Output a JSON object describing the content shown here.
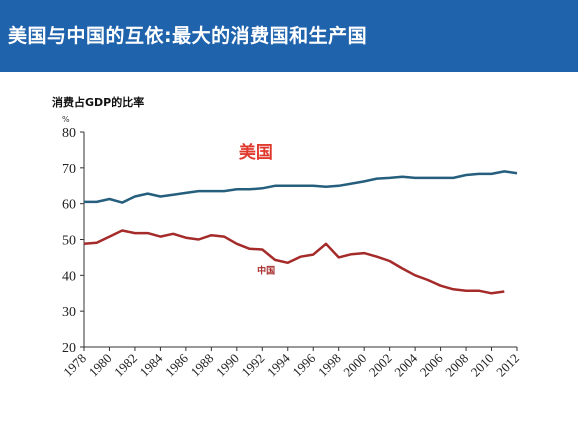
{
  "header": {
    "title": "美国与中国的互依:最大的消费国和生产国",
    "background_color": "#1f63ad"
  },
  "chart_data": {
    "type": "line",
    "title": "消费占GDP的比率",
    "ylabel": "%",
    "xlabel": "",
    "ylim": [
      20,
      80
    ],
    "yticks": [
      20,
      30,
      40,
      50,
      60,
      70,
      80
    ],
    "xlim": [
      1978,
      2012
    ],
    "xticks": [
      1978,
      1980,
      1982,
      1984,
      1986,
      1988,
      1990,
      1992,
      1994,
      1996,
      1998,
      2000,
      2002,
      2004,
      2006,
      2008,
      2010,
      2012
    ],
    "grid": false,
    "x": [
      1978,
      1979,
      1980,
      1981,
      1982,
      1983,
      1984,
      1985,
      1986,
      1987,
      1988,
      1989,
      1990,
      1991,
      1992,
      1993,
      1994,
      1995,
      1996,
      1997,
      1998,
      1999,
      2000,
      2001,
      2002,
      2003,
      2004,
      2005,
      2006,
      2007,
      2008,
      2009,
      2010,
      2011,
      2012
    ],
    "series": [
      {
        "name": "美国",
        "color": "#255f7d",
        "label_color": "#e03a2f",
        "values": [
          60.5,
          60.5,
          61.3,
          60.3,
          62.0,
          62.8,
          62.0,
          62.5,
          63.0,
          63.5,
          63.5,
          63.5,
          64.0,
          64.0,
          64.3,
          65.0,
          65.0,
          65.0,
          65.0,
          64.7,
          65.0,
          65.6,
          66.2,
          67.0,
          67.2,
          67.5,
          67.2,
          67.2,
          67.2,
          67.2,
          68.0,
          68.3,
          68.3,
          69.0,
          68.5
        ]
      },
      {
        "name": "中国",
        "color": "#a52a2a",
        "label_color": "#a52a2a",
        "values": [
          48.8,
          49.1,
          50.8,
          52.5,
          51.8,
          51.8,
          50.8,
          51.6,
          50.5,
          50.0,
          51.2,
          50.8,
          48.8,
          47.4,
          47.2,
          44.3,
          43.5,
          45.2,
          45.8,
          48.8,
          45.0,
          45.9,
          46.2,
          45.2,
          44.0,
          41.9,
          40.0,
          38.7,
          37.1,
          36.1,
          35.7,
          35.7,
          35.0,
          35.5,
          null
        ]
      }
    ]
  }
}
